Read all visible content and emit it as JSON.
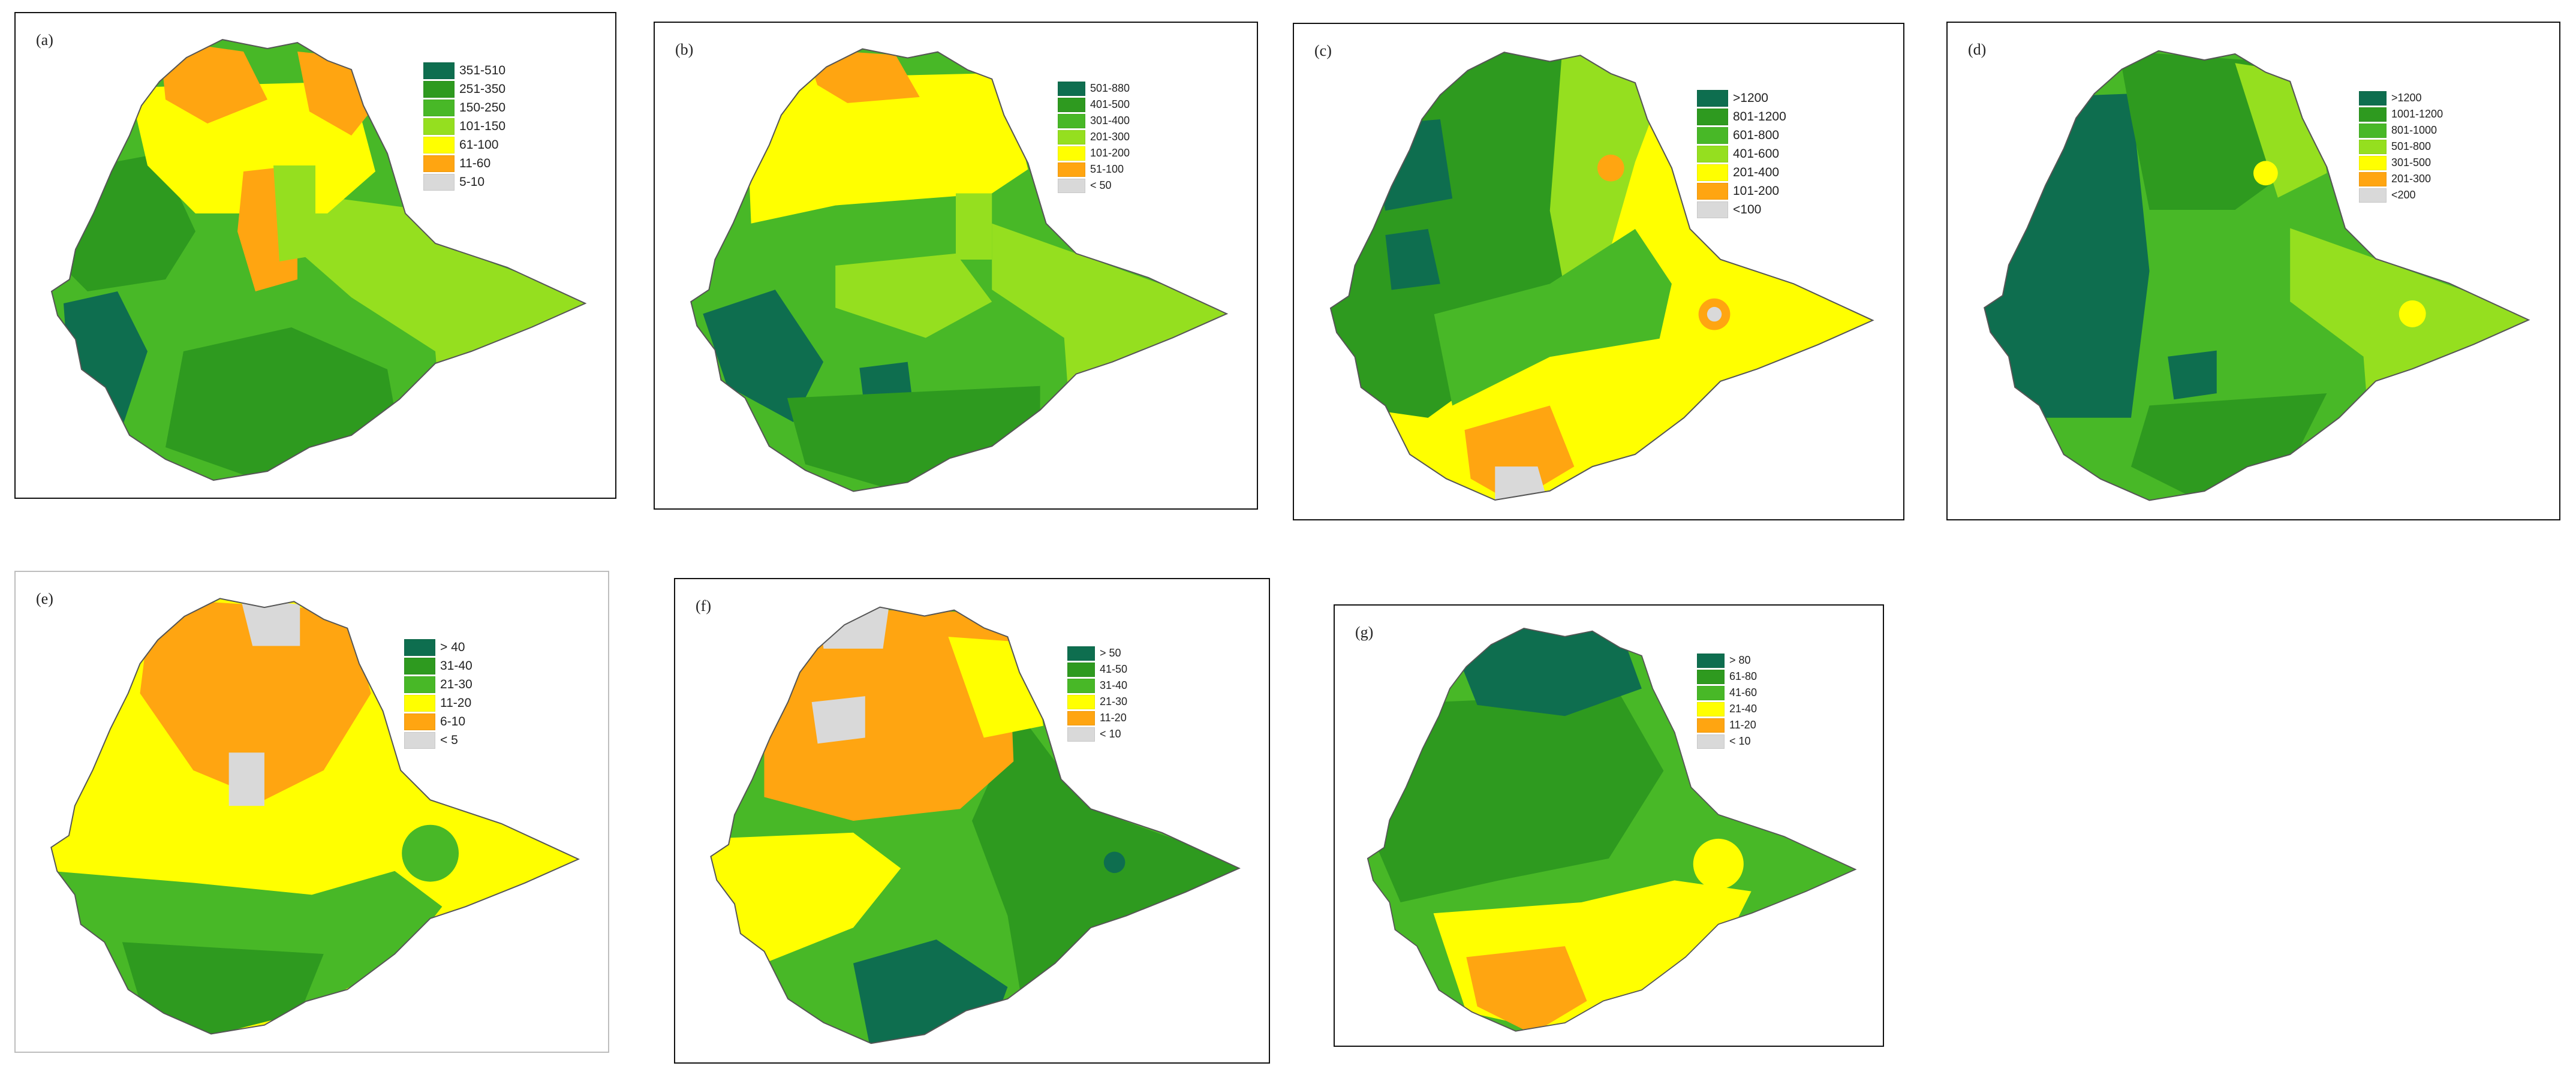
{
  "colors": {
    "c1": "#0e6e4f",
    "c2": "#2e9a1f",
    "c3": "#48b827",
    "c4": "#95df1f",
    "c5": "#ffff00",
    "c6": "#ffa511",
    "c7": "#d9d9d9"
  },
  "panels": [
    {
      "label": "(a)",
      "legend": [
        "351-510",
        "251-350",
        "150-250",
        "101-150",
        "61-100",
        "11-60",
        "5-10"
      ]
    },
    {
      "label": "(b)",
      "legend": [
        "501-880",
        "401-500",
        "301-400",
        "201-300",
        "101-200",
        "51-100",
        "< 50"
      ]
    },
    {
      "label": "(c)",
      "legend": [
        ">1200",
        "801-1200",
        "601-800",
        "401-600",
        "201-400",
        "101-200",
        "<100"
      ]
    },
    {
      "label": "(d)",
      "legend": [
        ">1200",
        "1001-1200",
        "801-1000",
        "501-800",
        "301-500",
        "201-300",
        "<200"
      ]
    },
    {
      "label": "(e)",
      "legend": [
        "> 40",
        "31-40",
        "21-30",
        "11-20",
        "6-10",
        "< 5"
      ]
    },
    {
      "label": "(f)",
      "legend": [
        "> 50",
        "41-50",
        "31-40",
        "21-30",
        "11-20",
        "< 10"
      ]
    },
    {
      "label": "(g)",
      "legend": [
        "> 80",
        "61-80",
        "41-60",
        "21-40",
        "11-20",
        "< 10"
      ]
    }
  ]
}
